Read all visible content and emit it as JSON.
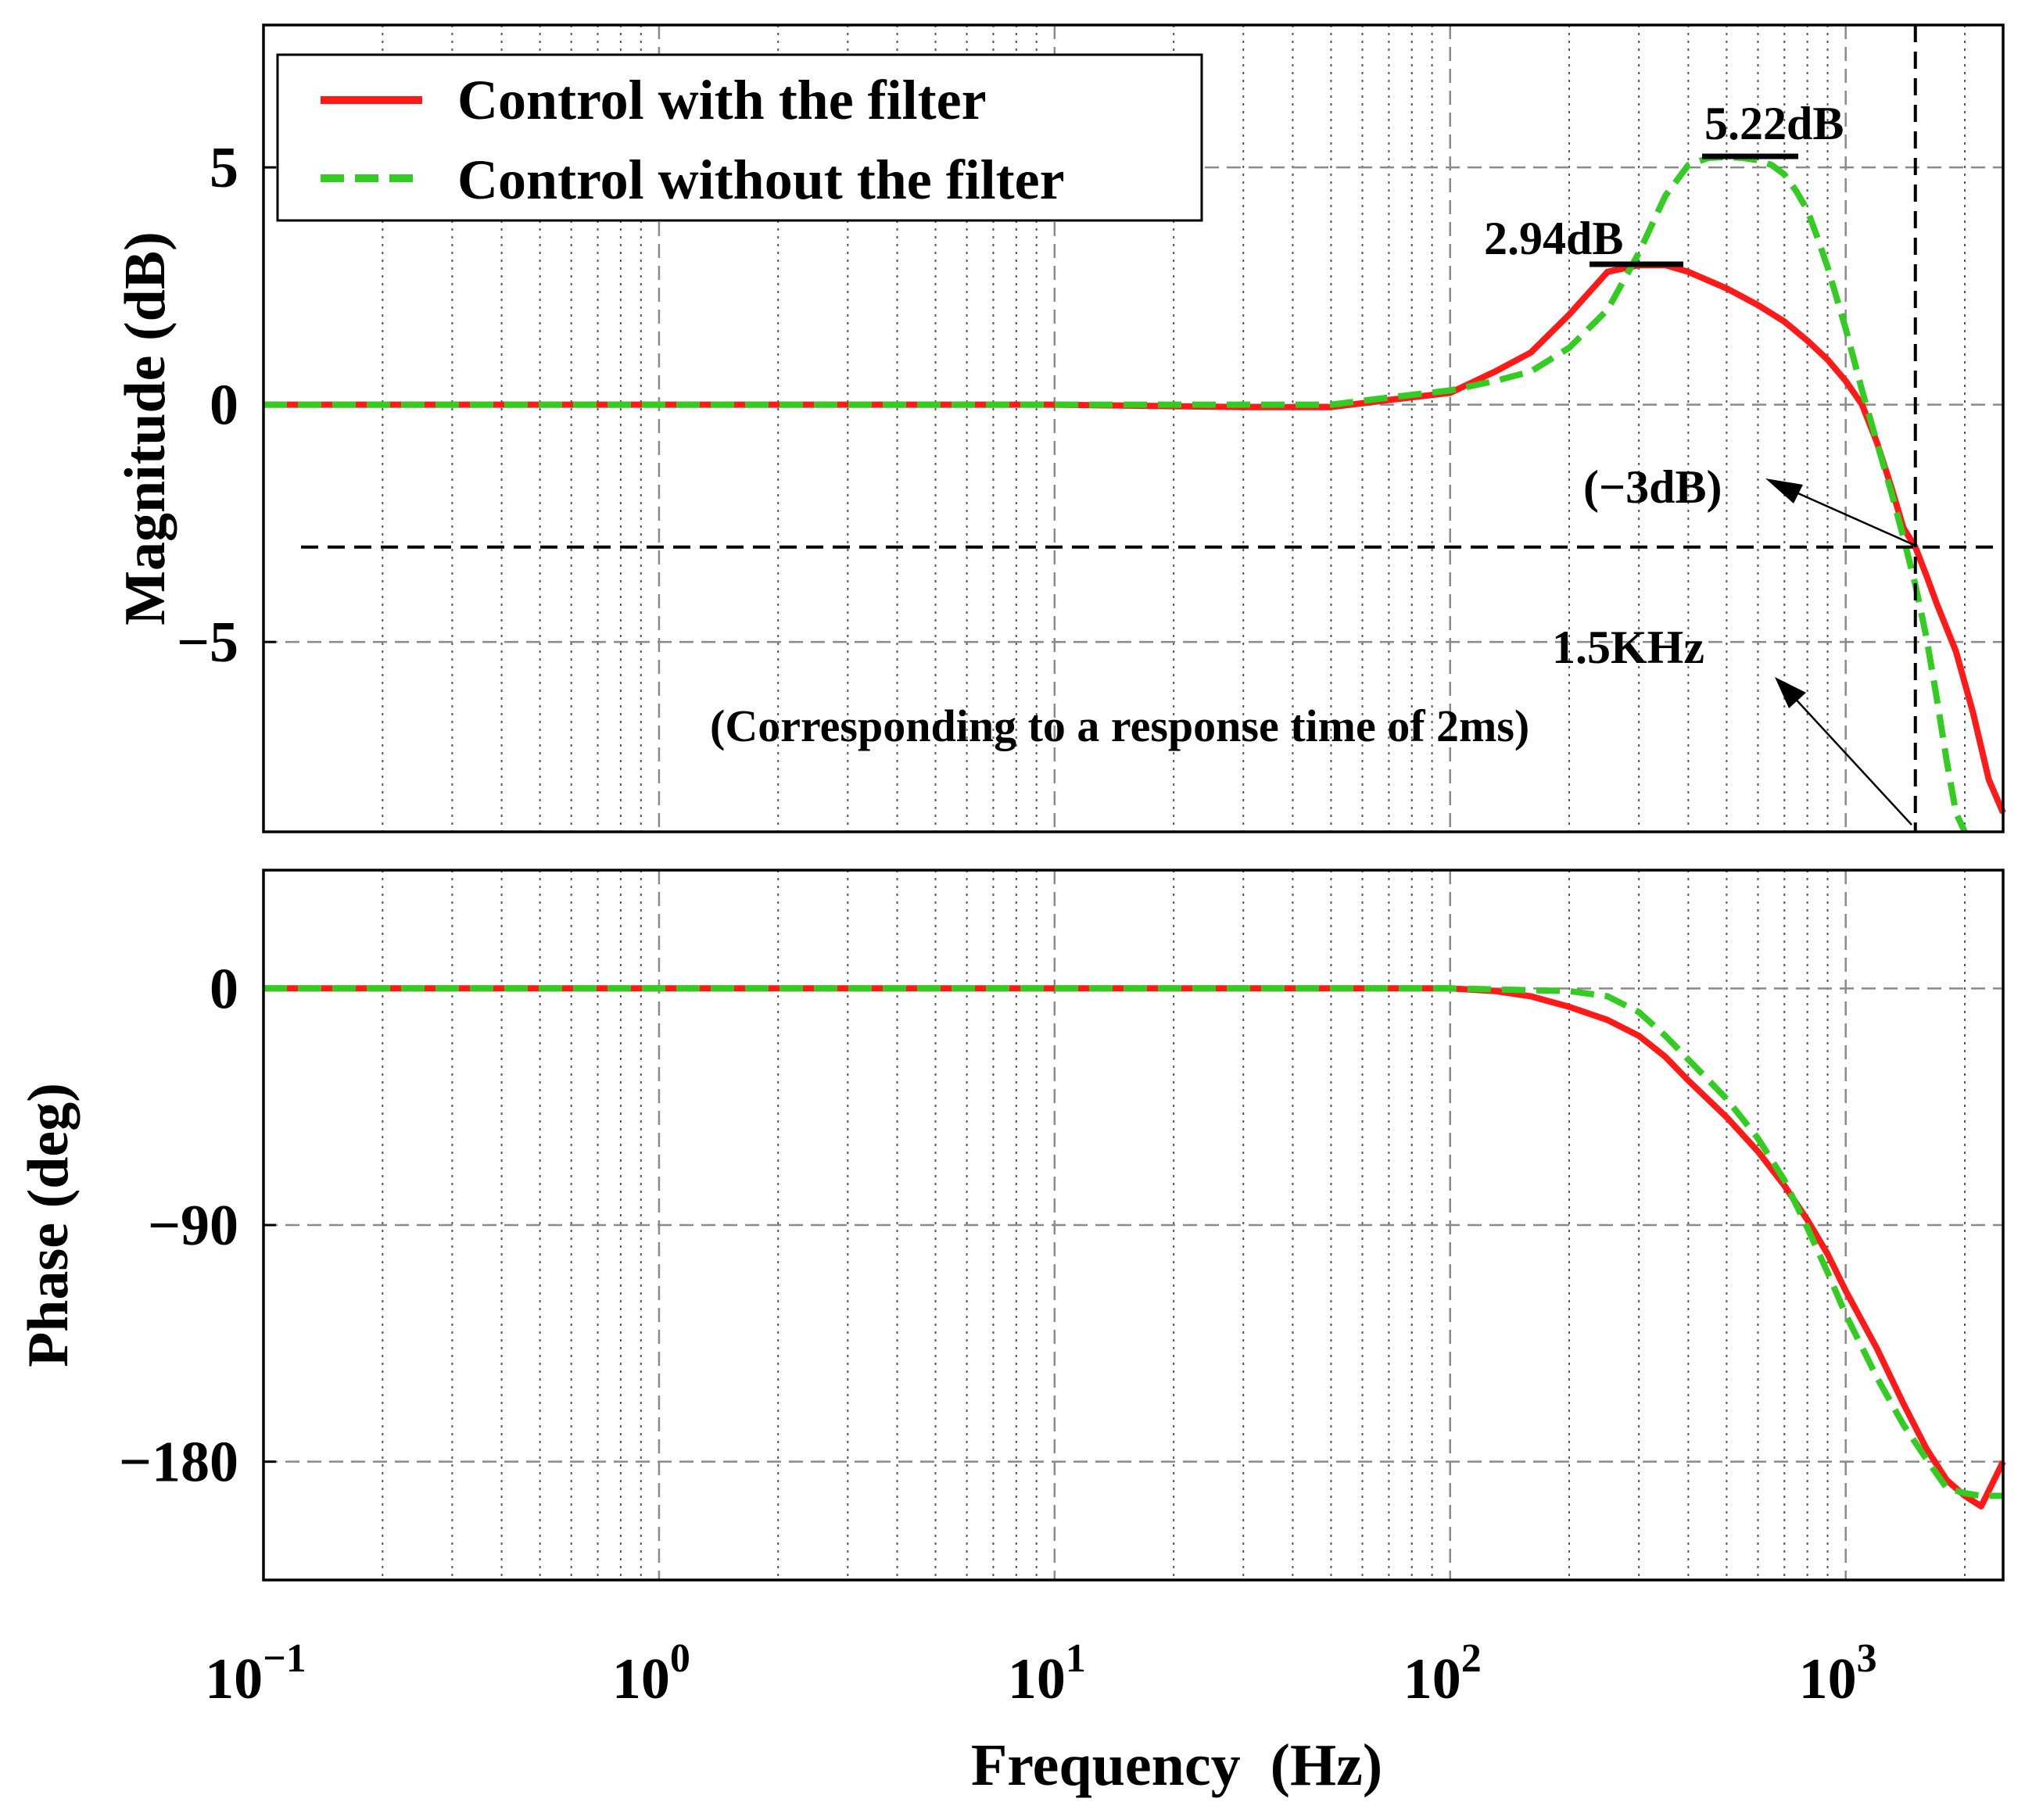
{
  "chart_data": [
    {
      "type": "line",
      "subplot": "magnitude",
      "ylabel": "Magnitude (dB)",
      "xscale": "log",
      "xlim": [
        0.1,
        2500
      ],
      "ylim": [
        -9,
        8
      ],
      "yticks": [
        {
          "v": 5,
          "label": "5"
        },
        {
          "v": 0,
          "label": "0"
        },
        {
          "v": -5,
          "label": "−5"
        }
      ],
      "grid": true,
      "legend": {
        "placement": "top-left",
        "entries": [
          {
            "label": "Control with the filter",
            "color": "#ff1a1a",
            "style": "solid"
          },
          {
            "label": "Control without the filter",
            "color": "#33cc22",
            "style": "dashed"
          }
        ]
      },
      "series": [
        {
          "name": "Control with the filter",
          "x": [
            0.1,
            1,
            10,
            30,
            50,
            70,
            100,
            130,
            160,
            200,
            250,
            300,
            350,
            400,
            500,
            600,
            700,
            800,
            900,
            1000,
            1100,
            1200,
            1300,
            1400,
            1500,
            1600,
            1700,
            1900,
            2100,
            2300,
            2500
          ],
          "y": [
            0,
            0,
            0,
            -0.05,
            -0.05,
            0.1,
            0.25,
            0.7,
            1.1,
            1.9,
            2.8,
            2.94,
            2.94,
            2.8,
            2.45,
            2.1,
            1.75,
            1.35,
            0.95,
            0.5,
            0.0,
            -0.8,
            -1.7,
            -2.6,
            -3.0,
            -3.6,
            -4.2,
            -5.2,
            -6.5,
            -7.9,
            -8.6
          ]
        },
        {
          "name": "Control without the filter",
          "x": [
            0.1,
            1,
            10,
            30,
            50,
            70,
            100,
            130,
            160,
            200,
            250,
            300,
            350,
            400,
            450,
            500,
            550,
            600,
            650,
            700,
            750,
            800,
            850,
            900,
            1000,
            1100,
            1200,
            1300,
            1400,
            1500,
            1600,
            1700,
            1800,
            1900,
            2000
          ],
          "y": [
            0,
            0,
            0,
            0,
            0,
            0.15,
            0.3,
            0.5,
            0.7,
            1.2,
            2.0,
            3.2,
            4.4,
            5.05,
            5.2,
            5.22,
            5.2,
            5.15,
            5.05,
            4.85,
            4.5,
            4.1,
            3.5,
            2.9,
            1.6,
            0.3,
            -0.8,
            -1.8,
            -2.8,
            -3.8,
            -4.9,
            -6.2,
            -7.5,
            -8.6,
            -9.0
          ]
        }
      ],
      "reference_lines": {
        "hline": -3,
        "vline": 1500
      },
      "annotations": {
        "peak_with": "2.94dB",
        "peak_without": "5.22dB",
        "minus3db": "(−3dB)",
        "freq": "1.5KHz",
        "response": "(Corresponding to a response time of 2ms)"
      }
    },
    {
      "type": "line",
      "subplot": "phase",
      "ylabel": "Phase (deg)",
      "xlabel": "Frequency  (Hz)",
      "xscale": "log",
      "xlim": [
        0.1,
        2500
      ],
      "ylim": [
        -225,
        45
      ],
      "yticks": [
        {
          "v": 0,
          "label": "0"
        },
        {
          "v": -90,
          "label": "−90"
        },
        {
          "v": -180,
          "label": "−180"
        }
      ],
      "xticks": [
        {
          "v": 0.1,
          "base": "10",
          "exp": "−1"
        },
        {
          "v": 1,
          "base": "10",
          "exp": "0"
        },
        {
          "v": 10,
          "base": "10",
          "exp": "1"
        },
        {
          "v": 100,
          "base": "10",
          "exp": "2"
        },
        {
          "v": 1000,
          "base": "10",
          "exp": "3"
        }
      ],
      "grid": true,
      "series": [
        {
          "name": "Control with the filter",
          "x": [
            0.1,
            1,
            10,
            50,
            100,
            130,
            160,
            200,
            250,
            300,
            350,
            400,
            500,
            600,
            700,
            800,
            900,
            1000,
            1200,
            1400,
            1600,
            1800,
            2000,
            2200,
            2500
          ],
          "y": [
            0,
            0,
            0,
            0,
            0,
            -1,
            -3,
            -7,
            -12,
            -18,
            -26,
            -35,
            -49,
            -62,
            -75,
            -88,
            -101,
            -115,
            -137,
            -158,
            -175,
            -187,
            -193,
            -197,
            -180
          ]
        },
        {
          "name": "Control without the filter",
          "x": [
            0.1,
            1,
            10,
            100,
            200,
            250,
            300,
            350,
            400,
            500,
            600,
            700,
            800,
            900,
            1000,
            1200,
            1400,
            1600,
            1800,
            2000,
            2200,
            2500
          ],
          "y": [
            0,
            0,
            0,
            0,
            -1,
            -3,
            -9,
            -18,
            -27,
            -42,
            -57,
            -73,
            -91,
            -108,
            -124,
            -148,
            -166,
            -179,
            -190,
            -192,
            -193,
            -193
          ]
        }
      ]
    }
  ]
}
